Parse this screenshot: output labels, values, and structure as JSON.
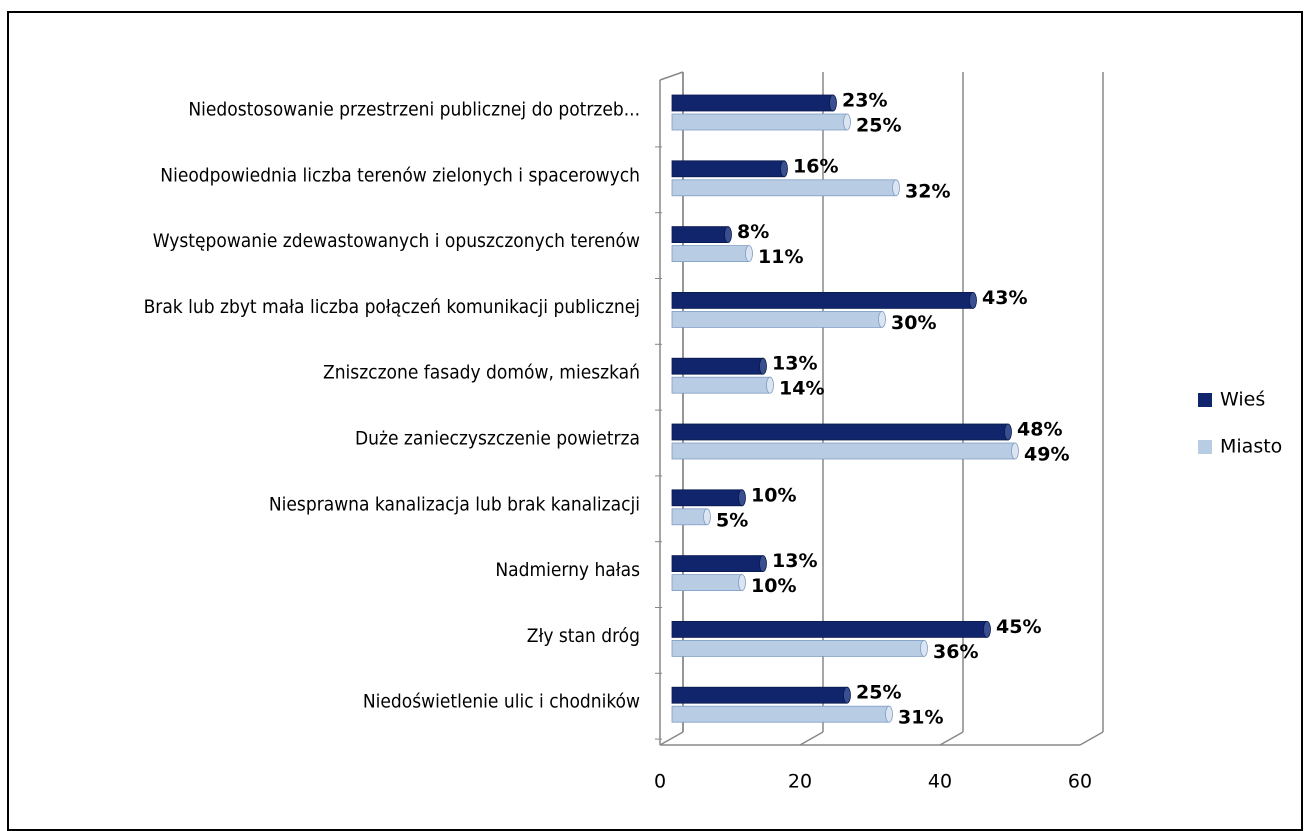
{
  "chart_data": {
    "type": "bar",
    "orientation": "horizontal",
    "categories": [
      "Niedostosowanie przestrzeni publicznej do potrzeb...",
      "Nieodpowiednia liczba terenów zielonych i spacerowych",
      "Występowanie zdewastowanych i opuszczonych terenów",
      "Brak lub zbyt mała liczba połączeń komunikacji publicznej",
      "Zniszczone fasady domów, mieszkań",
      "Duże zanieczyszczenie powietrza",
      "Niesprawna kanalizacja lub brak kanalizacji",
      "Nadmierny hałas",
      "Zły stan dróg",
      "Niedoświetlenie ulic i chodników"
    ],
    "series": [
      {
        "name": "Wieś",
        "color": "#10256b",
        "values": [
          23,
          16,
          8,
          43,
          13,
          48,
          10,
          13,
          45,
          25
        ],
        "value_labels": [
          "23%",
          "16%",
          "8%",
          "43%",
          "13%",
          "48%",
          "10%",
          "13%",
          "45%",
          "25%"
        ]
      },
      {
        "name": "Miasto",
        "color": "#b8cce4",
        "values": [
          25,
          32,
          11,
          30,
          14,
          49,
          5,
          10,
          36,
          31
        ],
        "value_labels": [
          "25%",
          "32%",
          "11%",
          "30%",
          "14%",
          "49%",
          "5%",
          "10%",
          "36%",
          "31%"
        ]
      }
    ],
    "xlim": [
      0,
      60
    ],
    "xticks": [
      0,
      20,
      40,
      60
    ],
    "grid": true,
    "legend": "right"
  }
}
